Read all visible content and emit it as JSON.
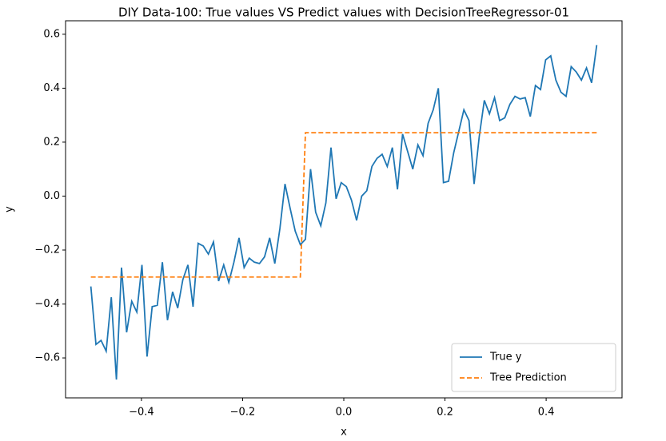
{
  "chart_data": {
    "type": "line",
    "title": "DIY Data-100: True values VS Predict values with DecisionTreeRegressor-01",
    "xlabel": "x",
    "ylabel": "y",
    "x": [
      -0.5,
      -0.4899,
      -0.4798,
      -0.4697,
      -0.4596,
      -0.4495,
      -0.4394,
      -0.4293,
      -0.4192,
      -0.4091,
      -0.399,
      -0.3889,
      -0.3788,
      -0.3687,
      -0.3586,
      -0.3485,
      -0.3384,
      -0.3283,
      -0.3182,
      -0.3081,
      -0.298,
      -0.2879,
      -0.2778,
      -0.2677,
      -0.2576,
      -0.2475,
      -0.2374,
      -0.2273,
      -0.2172,
      -0.2071,
      -0.197,
      -0.1869,
      -0.1768,
      -0.1667,
      -0.1566,
      -0.1465,
      -0.1364,
      -0.1263,
      -0.1162,
      -0.1061,
      -0.096,
      -0.0859,
      -0.0758,
      -0.0657,
      -0.0556,
      -0.0455,
      -0.0354,
      -0.0253,
      -0.0152,
      -0.0051,
      0.0051,
      0.0152,
      0.0253,
      0.0354,
      0.0455,
      0.0556,
      0.0657,
      0.0758,
      0.0859,
      0.096,
      0.1061,
      0.1162,
      0.1263,
      0.1364,
      0.1465,
      0.1566,
      0.1667,
      0.1768,
      0.1869,
      0.197,
      0.2071,
      0.2172,
      0.2273,
      0.2374,
      0.2475,
      0.2576,
      0.2677,
      0.2778,
      0.2879,
      0.298,
      0.3081,
      0.3182,
      0.3283,
      0.3384,
      0.3485,
      0.3586,
      0.3687,
      0.3788,
      0.3889,
      0.399,
      0.4091,
      0.4192,
      0.4293,
      0.4394,
      0.4495,
      0.4596,
      0.4697,
      0.4798,
      0.4899,
      0.5
    ],
    "series": [
      {
        "name": "True y",
        "color": "#1f77b4",
        "linestyle": "solid",
        "values": [
          -0.335,
          -0.55,
          -0.535,
          -0.575,
          -0.375,
          -0.68,
          -0.265,
          -0.505,
          -0.39,
          -0.43,
          -0.255,
          -0.595,
          -0.41,
          -0.405,
          -0.245,
          -0.46,
          -0.355,
          -0.415,
          -0.31,
          -0.255,
          -0.41,
          -0.175,
          -0.185,
          -0.215,
          -0.17,
          -0.315,
          -0.255,
          -0.32,
          -0.245,
          -0.155,
          -0.265,
          -0.23,
          -0.245,
          -0.25,
          -0.225,
          -0.155,
          -0.25,
          -0.12,
          0.045,
          -0.045,
          -0.13,
          -0.18,
          -0.16,
          0.1,
          -0.06,
          -0.11,
          -0.025,
          0.18,
          -0.01,
          0.05,
          0.035,
          -0.015,
          -0.09,
          0.0,
          0.02,
          0.11,
          0.14,
          0.155,
          0.11,
          0.18,
          0.025,
          0.23,
          0.165,
          0.1,
          0.19,
          0.15,
          0.27,
          0.32,
          0.4,
          0.05,
          0.055,
          0.16,
          0.24,
          0.32,
          0.28,
          0.045,
          0.22,
          0.355,
          0.305,
          0.365,
          0.28,
          0.29,
          0.34,
          0.37,
          0.36,
          0.365,
          0.295,
          0.41,
          0.395,
          0.505,
          0.52,
          0.43,
          0.385,
          0.37,
          0.48,
          0.46,
          0.43,
          0.475,
          0.42,
          0.56
        ]
      },
      {
        "name": "Tree Prediction",
        "color": "#ff7f0e",
        "linestyle": "dashed",
        "values": [
          -0.3,
          -0.3,
          -0.3,
          -0.3,
          -0.3,
          -0.3,
          -0.3,
          -0.3,
          -0.3,
          -0.3,
          -0.3,
          -0.3,
          -0.3,
          -0.3,
          -0.3,
          -0.3,
          -0.3,
          -0.3,
          -0.3,
          -0.3,
          -0.3,
          -0.3,
          -0.3,
          -0.3,
          -0.3,
          -0.3,
          -0.3,
          -0.3,
          -0.3,
          -0.3,
          -0.3,
          -0.3,
          -0.3,
          -0.3,
          -0.3,
          -0.3,
          -0.3,
          -0.3,
          -0.3,
          -0.3,
          -0.3,
          -0.3,
          0.235,
          0.235,
          0.235,
          0.235,
          0.235,
          0.235,
          0.235,
          0.235,
          0.235,
          0.235,
          0.235,
          0.235,
          0.235,
          0.235,
          0.235,
          0.235,
          0.235,
          0.235,
          0.235,
          0.235,
          0.235,
          0.235,
          0.235,
          0.235,
          0.235,
          0.235,
          0.235,
          0.235,
          0.235,
          0.235,
          0.235,
          0.235,
          0.235,
          0.235,
          0.235,
          0.235,
          0.235,
          0.235,
          0.235,
          0.235,
          0.235,
          0.235,
          0.235,
          0.235,
          0.235,
          0.235,
          0.235,
          0.235,
          0.235,
          0.235,
          0.235,
          0.235,
          0.235,
          0.235,
          0.235,
          0.235,
          0.235,
          0.235
        ]
      }
    ],
    "xlim": [
      -0.55,
      0.55
    ],
    "ylim": [
      -0.748,
      0.65
    ],
    "xticks": [
      {
        "value": -0.4,
        "label": "−0.4"
      },
      {
        "value": -0.2,
        "label": "−0.2"
      },
      {
        "value": 0,
        "label": "0.0"
      },
      0.2,
      0.4
    ],
    "yticks": [
      {
        "value": -0.6,
        "label": "−0.6"
      },
      {
        "value": -0.4,
        "label": "−0.4"
      },
      {
        "value": -0.2,
        "label": "−0.2"
      },
      {
        "value": 0,
        "label": "0.0"
      },
      0.2,
      0.4,
      0.6
    ],
    "legend": "lower right"
  }
}
